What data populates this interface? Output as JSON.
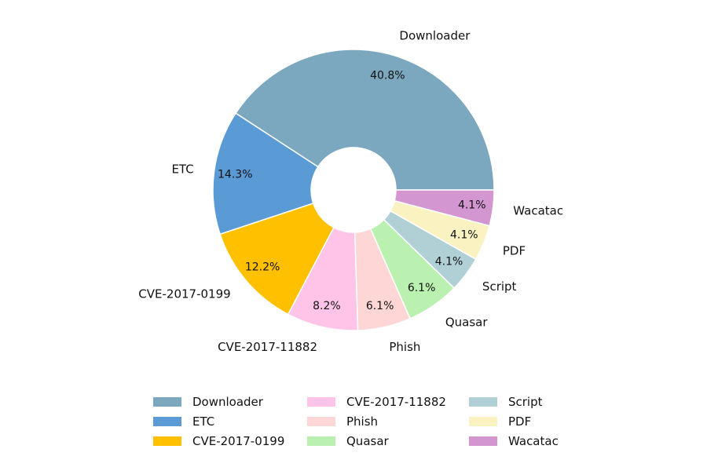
{
  "chart_data": {
    "type": "pie",
    "donut": true,
    "title": "",
    "start_angle_deg": 0,
    "direction": "counterclockwise",
    "slices": [
      {
        "label": "Downloader",
        "value": 40.8,
        "pct_label": "40.8%",
        "color": "#7BA7BF"
      },
      {
        "label": "ETC",
        "value": 14.3,
        "pct_label": "14.3%",
        "color": "#5B9BD5"
      },
      {
        "label": "CVE-2017-0199",
        "value": 12.2,
        "pct_label": "12.2%",
        "color": "#FFC000"
      },
      {
        "label": "CVE-2017-11882",
        "value": 8.2,
        "pct_label": "8.2%",
        "color": "#FFC4E8"
      },
      {
        "label": "Phish",
        "value": 6.1,
        "pct_label": "6.1%",
        "color": "#FFD6D6"
      },
      {
        "label": "Quasar",
        "value": 6.1,
        "pct_label": "6.1%",
        "color": "#BAF0B0"
      },
      {
        "label": "Script",
        "value": 4.1,
        "pct_label": "4.1%",
        "color": "#B0D0D6"
      },
      {
        "label": "PDF",
        "value": 4.1,
        "pct_label": "4.1%",
        "color": "#FAF2C0"
      },
      {
        "label": "Wacatac",
        "value": 4.1,
        "pct_label": "4.1%",
        "color": "#D396D0"
      }
    ],
    "legend_position": "bottom-center"
  }
}
